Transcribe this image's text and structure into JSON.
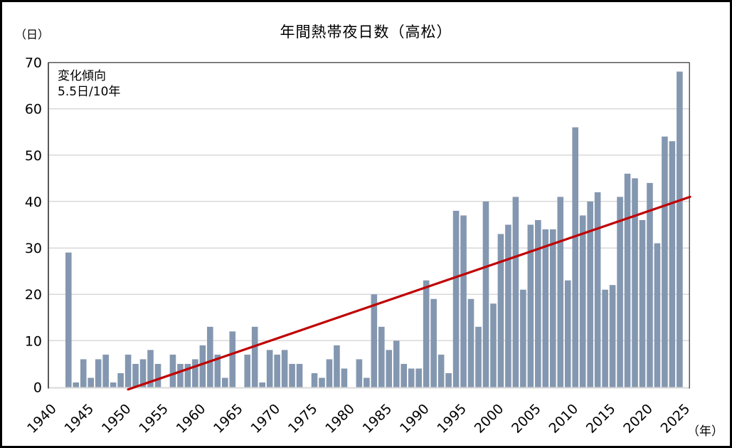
{
  "chart": {
    "title": "年間熱帯夜日数（高松）",
    "y_unit_label": "（日）",
    "x_unit_label": "（年）",
    "trend_annotation_line1": "変化傾向",
    "trend_annotation_line2": "5.5日/10年"
  },
  "chart_data": {
    "type": "bar",
    "title": "年間熱帯夜日数（高松）",
    "xlabel": "年",
    "ylabel": "日",
    "ylim": [
      0,
      70
    ],
    "y_ticks": [
      0,
      10,
      20,
      30,
      40,
      50,
      60,
      70
    ],
    "x_tick_years": [
      1940,
      1945,
      1950,
      1955,
      1960,
      1965,
      1970,
      1975,
      1980,
      1985,
      1990,
      1995,
      2000,
      2005,
      2010,
      2015,
      2020,
      2025
    ],
    "x_axis_range": [
      1940,
      2026
    ],
    "grid": "horizontal",
    "legend": "none",
    "start_year": 1942,
    "end_year": 2024,
    "years": [
      1942,
      1943,
      1944,
      1945,
      1946,
      1947,
      1948,
      1949,
      1950,
      1951,
      1952,
      1953,
      1954,
      1955,
      1956,
      1957,
      1958,
      1959,
      1960,
      1961,
      1962,
      1963,
      1964,
      1965,
      1966,
      1967,
      1968,
      1969,
      1970,
      1971,
      1972,
      1973,
      1974,
      1975,
      1976,
      1977,
      1978,
      1979,
      1980,
      1981,
      1982,
      1983,
      1984,
      1985,
      1986,
      1987,
      1988,
      1989,
      1990,
      1991,
      1992,
      1993,
      1994,
      1995,
      1996,
      1997,
      1998,
      1999,
      2000,
      2001,
      2002,
      2003,
      2004,
      2005,
      2006,
      2007,
      2008,
      2009,
      2010,
      2011,
      2012,
      2013,
      2014,
      2015,
      2016,
      2017,
      2018,
      2019,
      2020,
      2021,
      2022,
      2023,
      2024
    ],
    "values": [
      29,
      1,
      6,
      2,
      6,
      7,
      1,
      3,
      7,
      5,
      6,
      8,
      5,
      0,
      7,
      5,
      5,
      6,
      9,
      13,
      7,
      2,
      12,
      0,
      7,
      13,
      1,
      8,
      7,
      8,
      5,
      5,
      0,
      3,
      2,
      6,
      9,
      4,
      0,
      6,
      2,
      20,
      13,
      8,
      10,
      5,
      4,
      4,
      23,
      19,
      7,
      3,
      38,
      37,
      19,
      13,
      40,
      18,
      33,
      35,
      41,
      21,
      35,
      36,
      34,
      34,
      41,
      23,
      56,
      37,
      40,
      42,
      21,
      22,
      41,
      46,
      45,
      36,
      44,
      31,
      54,
      53,
      68
    ],
    "zero_years": [
      1955,
      1965,
      1974,
      1980
    ],
    "trend": {
      "rate_per_decade_days": 5.5,
      "line_year_start": 1950,
      "line_value_start": -0.5,
      "line_year_end": 2025.4,
      "line_value_end": 41.0
    },
    "colors": {
      "bar": "#8497b0",
      "trend_line": "#c00000",
      "gridline": "#d9d9d9",
      "axis_line": "#d9d9d9",
      "plot_border": "#595959",
      "text": "#000000",
      "background": "#ffffff"
    }
  }
}
